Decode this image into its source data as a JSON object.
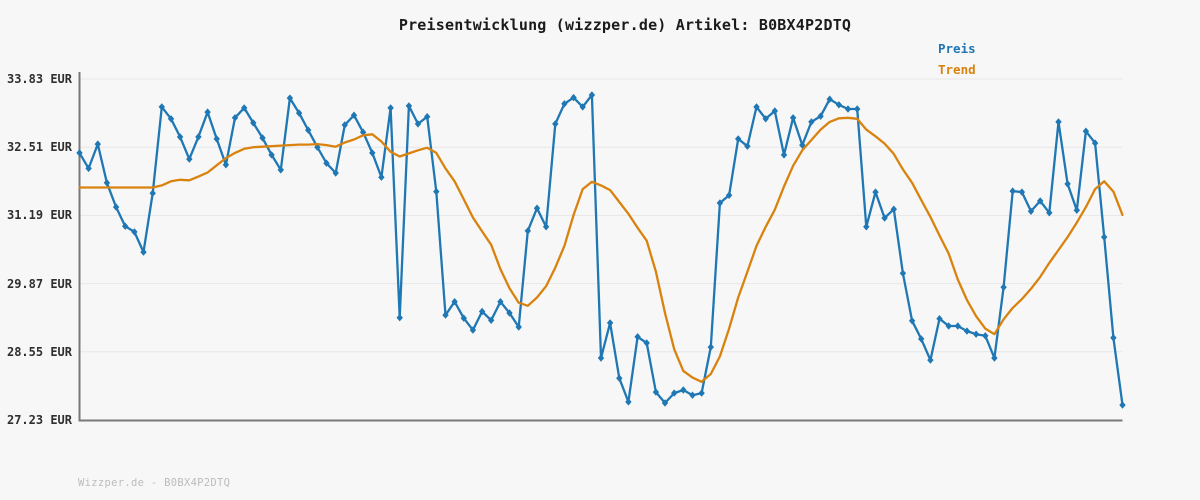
{
  "title": "Preisentwicklung (wizzper.de) Artikel: B0BX4P2DTQ",
  "footer": "Wizzper.de - B0BX4P2DTQ",
  "legend": {
    "items": [
      {
        "label": "Preis",
        "color": "#1f77b4"
      },
      {
        "label": "Trend",
        "color": "#d9820e"
      }
    ]
  },
  "colors": {
    "background": "#f7f7f7",
    "grid": "#e7e7e7",
    "axis": "#787878",
    "tick_text": "#2f2f2f",
    "title_text": "#1b1b1b",
    "footer_text": "#bcbcbc",
    "price": "#1f77b4",
    "trend": "#d9820e"
  },
  "chart_data": {
    "type": "line",
    "title": "Preisentwicklung (wizzper.de) Artikel: B0BX4P2DTQ",
    "xlabel": "",
    "ylabel": "",
    "currency": "EUR",
    "grid": true,
    "legend_position": "top-right",
    "x_tick_labels": [],
    "ylim": [
      27.23,
      33.83
    ],
    "y_ticks": [
      {
        "value": 33.83,
        "label": "33.83 EUR"
      },
      {
        "value": 32.51,
        "label": "32.51 EUR"
      },
      {
        "value": 31.19,
        "label": "31.19 EUR"
      },
      {
        "value": 29.87,
        "label": "29.87 EUR"
      },
      {
        "value": 28.55,
        "label": "28.55 EUR"
      },
      {
        "value": 27.23,
        "label": "27.23 EUR"
      }
    ],
    "series": [
      {
        "name": "Preis",
        "color": "#1f77b4",
        "marker": "diamond",
        "values": [
          32.4,
          32.1,
          32.57,
          31.82,
          31.35,
          30.98,
          30.87,
          30.48,
          31.62,
          33.29,
          33.06,
          32.71,
          32.28,
          32.71,
          33.19,
          32.67,
          32.17,
          33.08,
          33.27,
          32.98,
          32.69,
          32.36,
          32.07,
          33.46,
          33.17,
          32.84,
          32.51,
          32.2,
          32.01,
          32.94,
          33.13,
          32.8,
          32.4,
          31.93,
          33.27,
          29.21,
          33.31,
          32.96,
          33.1,
          31.65,
          29.26,
          29.52,
          29.2,
          28.97,
          29.33,
          29.16,
          29.52,
          29.3,
          29.03,
          30.89,
          31.33,
          30.97,
          32.96,
          33.35,
          33.47,
          33.29,
          33.52,
          28.43,
          29.11,
          28.04,
          27.58,
          28.84,
          28.72,
          27.77,
          27.56,
          27.75,
          27.81,
          27.71,
          27.75,
          28.64,
          31.43,
          31.58,
          32.67,
          32.53,
          33.29,
          33.06,
          33.21,
          32.36,
          33.08,
          32.55,
          33.0,
          33.11,
          33.44,
          33.33,
          33.25,
          33.25,
          30.97,
          31.64,
          31.14,
          31.31,
          30.07,
          29.15,
          28.8,
          28.39,
          29.19,
          29.05,
          29.05,
          28.95,
          28.89,
          28.86,
          28.43,
          29.8,
          31.66,
          31.64,
          31.27,
          31.47,
          31.24,
          33.0,
          31.8,
          31.29,
          32.82,
          32.59,
          30.77,
          28.82,
          27.52
        ]
      },
      {
        "name": "Trend",
        "color": "#d9820e",
        "marker": "none",
        "values": [
          31.73,
          31.73,
          31.73,
          31.73,
          31.73,
          31.73,
          31.73,
          31.73,
          31.73,
          31.77,
          31.85,
          31.88,
          31.87,
          31.94,
          32.02,
          32.16,
          32.3,
          32.4,
          32.48,
          32.51,
          32.52,
          32.53,
          32.54,
          32.55,
          32.56,
          32.56,
          32.57,
          32.55,
          32.52,
          32.6,
          32.66,
          32.74,
          32.76,
          32.62,
          32.42,
          32.33,
          32.39,
          32.45,
          32.5,
          32.4,
          32.1,
          31.85,
          31.5,
          31.15,
          30.88,
          30.62,
          30.15,
          29.78,
          29.5,
          29.44,
          29.6,
          29.82,
          30.18,
          30.6,
          31.2,
          31.7,
          31.84,
          31.77,
          31.68,
          31.45,
          31.22,
          30.95,
          30.7,
          30.1,
          29.3,
          28.6,
          28.18,
          28.05,
          27.97,
          28.12,
          28.46,
          29.0,
          29.6,
          30.1,
          30.6,
          30.97,
          31.3,
          31.75,
          32.15,
          32.45,
          32.65,
          32.85,
          33.0,
          33.07,
          33.08,
          33.06,
          32.85,
          32.72,
          32.58,
          32.38,
          32.08,
          31.82,
          31.49,
          31.16,
          30.8,
          30.45,
          29.95,
          29.55,
          29.24,
          29.0,
          28.89,
          29.18,
          29.4,
          29.57,
          29.77,
          30.0,
          30.27,
          30.52,
          30.77,
          31.05,
          31.35,
          31.7,
          31.85,
          31.65,
          31.2
        ]
      }
    ]
  }
}
